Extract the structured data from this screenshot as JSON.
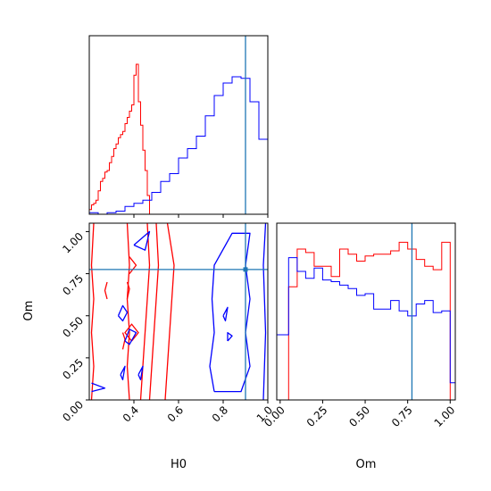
{
  "chart_data": [
    {
      "type": "histogram",
      "title": "",
      "xlabel": "",
      "ylabel": "",
      "xlim": [
        0.2,
        1.0
      ],
      "truth_line": {
        "x": 0.9,
        "color": "#1f77b4"
      },
      "series": [
        {
          "color": "#ff0000",
          "bin_edges": [
            0.2,
            0.21,
            0.22,
            0.23,
            0.24,
            0.25,
            0.26,
            0.27,
            0.28,
            0.29,
            0.3,
            0.31,
            0.32,
            0.33,
            0.34,
            0.35,
            0.36,
            0.37,
            0.38,
            0.39,
            0.4,
            0.41,
            0.42,
            0.43,
            0.44,
            0.45,
            0.46,
            0.47,
            0.48
          ],
          "counts": [
            0.03,
            0.06,
            0.07,
            0.09,
            0.15,
            0.21,
            0.23,
            0.27,
            0.28,
            0.33,
            0.37,
            0.42,
            0.45,
            0.49,
            0.51,
            0.53,
            0.58,
            0.62,
            0.66,
            0.7,
            0.89,
            0.96,
            0.72,
            0.57,
            0.41,
            0.28,
            0.12,
            0.0
          ]
        },
        {
          "color": "#0000ff",
          "bin_edges": [
            0.2,
            0.24,
            0.28,
            0.32,
            0.36,
            0.4,
            0.44,
            0.48,
            0.52,
            0.56,
            0.6,
            0.64,
            0.68,
            0.72,
            0.76,
            0.8,
            0.84,
            0.88,
            0.92,
            0.96,
            1.0
          ],
          "counts": [
            0.01,
            0.0,
            0.01,
            0.02,
            0.05,
            0.07,
            0.09,
            0.14,
            0.21,
            0.26,
            0.36,
            0.42,
            0.5,
            0.63,
            0.76,
            0.84,
            0.88,
            0.87,
            0.72,
            0.48
          ]
        }
      ]
    },
    {
      "type": "contour",
      "title": "",
      "xlabel": "H0",
      "ylabel": "Om",
      "xlim": [
        0.2,
        1.0
      ],
      "ylim": [
        0.0,
        1.05
      ],
      "x_ticks": [
        "0.4",
        "0.6",
        "0.8",
        "1.0"
      ],
      "y_ticks": [
        "0.00",
        "0.25",
        "0.50",
        "0.75",
        "1.00"
      ],
      "truth_point": {
        "x": 0.9,
        "y": 0.775,
        "color": "#1f77b4"
      },
      "series": [
        {
          "color": "#ff0000",
          "contours": [
            [
              [
                0.21,
                0.0
              ],
              [
                0.22,
                0.2
              ],
              [
                0.21,
                0.4
              ],
              [
                0.22,
                0.6
              ],
              [
                0.21,
                0.8
              ],
              [
                0.22,
                1.05
              ]
            ],
            [
              [
                0.38,
                0.0
              ],
              [
                0.37,
                0.2
              ],
              [
                0.38,
                0.4
              ],
              [
                0.37,
                0.6
              ],
              [
                0.38,
                0.8
              ],
              [
                0.37,
                1.05
              ]
            ],
            [
              [
                0.47,
                0.0
              ],
              [
                0.48,
                0.2
              ],
              [
                0.49,
                0.4
              ],
              [
                0.5,
                0.6
              ],
              [
                0.51,
                0.8
              ],
              [
                0.5,
                1.05
              ]
            ],
            [
              [
                0.43,
                0.0
              ],
              [
                0.44,
                0.2
              ],
              [
                0.45,
                0.4
              ],
              [
                0.46,
                0.6
              ],
              [
                0.47,
                0.8
              ],
              [
                0.46,
                1.05
              ]
            ],
            [
              [
                0.54,
                0.0
              ],
              [
                0.55,
                0.2
              ],
              [
                0.56,
                0.4
              ],
              [
                0.57,
                0.6
              ],
              [
                0.58,
                0.8
              ],
              [
                0.55,
                1.05
              ]
            ],
            [
              [
                0.28,
                0.6
              ],
              [
                0.27,
                0.65
              ],
              [
                0.28,
                0.7
              ]
            ],
            [
              [
                0.37,
                0.6
              ],
              [
                0.38,
                0.66
              ],
              [
                0.37,
                0.7
              ]
            ],
            [
              [
                0.35,
                0.3
              ],
              [
                0.36,
                0.36
              ],
              [
                0.35,
                0.4
              ]
            ],
            [
              [
                0.39,
                0.35
              ],
              [
                0.42,
                0.4
              ],
              [
                0.39,
                0.45
              ],
              [
                0.36,
                0.4
              ],
              [
                0.39,
                0.35
              ]
            ],
            [
              [
                0.38,
                0.75
              ],
              [
                0.41,
                0.8
              ],
              [
                0.38,
                0.85
              ]
            ]
          ]
        },
        {
          "color": "#0000ff",
          "contours": [
            [
              [
                0.76,
                0.05
              ],
              [
                0.74,
                0.2
              ],
              [
                0.76,
                0.4
              ],
              [
                0.75,
                0.6
              ],
              [
                0.76,
                0.8
              ],
              [
                0.84,
                0.99
              ],
              [
                0.92,
                0.99
              ],
              [
                0.9,
                0.8
              ],
              [
                0.92,
                0.6
              ],
              [
                0.9,
                0.4
              ],
              [
                0.92,
                0.2
              ],
              [
                0.88,
                0.05
              ],
              [
                0.76,
                0.05
              ]
            ],
            [
              [
                0.98,
                0.0
              ],
              [
                0.99,
                0.4
              ],
              [
                0.98,
                0.8
              ],
              [
                0.99,
                1.05
              ]
            ],
            [
              [
                0.21,
                0.05
              ],
              [
                0.27,
                0.07
              ],
              [
                0.21,
                0.1
              ]
            ],
            [
              [
                0.36,
                0.35
              ],
              [
                0.38,
                0.42
              ],
              [
                0.41,
                0.4
              ],
              [
                0.38,
                0.33
              ],
              [
                0.36,
                0.35
              ]
            ],
            [
              [
                0.33,
                0.5
              ],
              [
                0.35,
                0.56
              ],
              [
                0.37,
                0.52
              ],
              [
                0.35,
                0.47
              ],
              [
                0.33,
                0.5
              ]
            ],
            [
              [
                0.4,
                0.92
              ],
              [
                0.47,
                1.0
              ],
              [
                0.45,
                0.89
              ],
              [
                0.4,
                0.92
              ]
            ],
            [
              [
                0.34,
                0.15
              ],
              [
                0.36,
                0.2
              ],
              [
                0.35,
                0.12
              ],
              [
                0.34,
                0.15
              ]
            ],
            [
              [
                0.42,
                0.15
              ],
              [
                0.44,
                0.2
              ],
              [
                0.43,
                0.12
              ],
              [
                0.42,
                0.15
              ]
            ],
            [
              [
                0.8,
                0.5
              ],
              [
                0.82,
                0.55
              ],
              [
                0.81,
                0.47
              ],
              [
                0.8,
                0.5
              ]
            ],
            [
              [
                0.82,
                0.35
              ],
              [
                0.84,
                0.38
              ],
              [
                0.82,
                0.4
              ],
              [
                0.82,
                0.35
              ]
            ]
          ]
        }
      ]
    },
    {
      "type": "histogram",
      "title": "",
      "xlabel": "Om",
      "ylabel": "",
      "xlim": [
        -0.02,
        1.03
      ],
      "x_ticks": [
        "0.00",
        "0.25",
        "0.50",
        "0.75",
        "1.00"
      ],
      "truth_line": {
        "x": 0.775,
        "color": "#1f77b4"
      },
      "series": [
        {
          "color": "#ff0000",
          "bin_edges": [
            0.0,
            0.05,
            0.1,
            0.15,
            0.2,
            0.25,
            0.3,
            0.35,
            0.4,
            0.45,
            0.5,
            0.55,
            0.6,
            0.65,
            0.7,
            0.75,
            0.8,
            0.85,
            0.9,
            0.95,
            1.0
          ],
          "counts": [
            0.0,
            0.66,
            0.88,
            0.86,
            0.78,
            0.78,
            0.72,
            0.88,
            0.85,
            0.81,
            0.84,
            0.85,
            0.85,
            0.87,
            0.92,
            0.88,
            0.82,
            0.78,
            0.76,
            0.92
          ]
        },
        {
          "color": "#0000ff",
          "bin_edges": [
            -0.02,
            0.0,
            0.05,
            0.1,
            0.15,
            0.2,
            0.25,
            0.3,
            0.35,
            0.4,
            0.45,
            0.5,
            0.55,
            0.6,
            0.65,
            0.7,
            0.75,
            0.8,
            0.85,
            0.9,
            0.95,
            1.0,
            1.03
          ],
          "counts": [
            0.38,
            0.38,
            0.83,
            0.75,
            0.71,
            0.77,
            0.7,
            0.69,
            0.67,
            0.65,
            0.61,
            0.62,
            0.53,
            0.53,
            0.58,
            0.52,
            0.49,
            0.56,
            0.58,
            0.51,
            0.52,
            0.1
          ]
        }
      ]
    }
  ]
}
